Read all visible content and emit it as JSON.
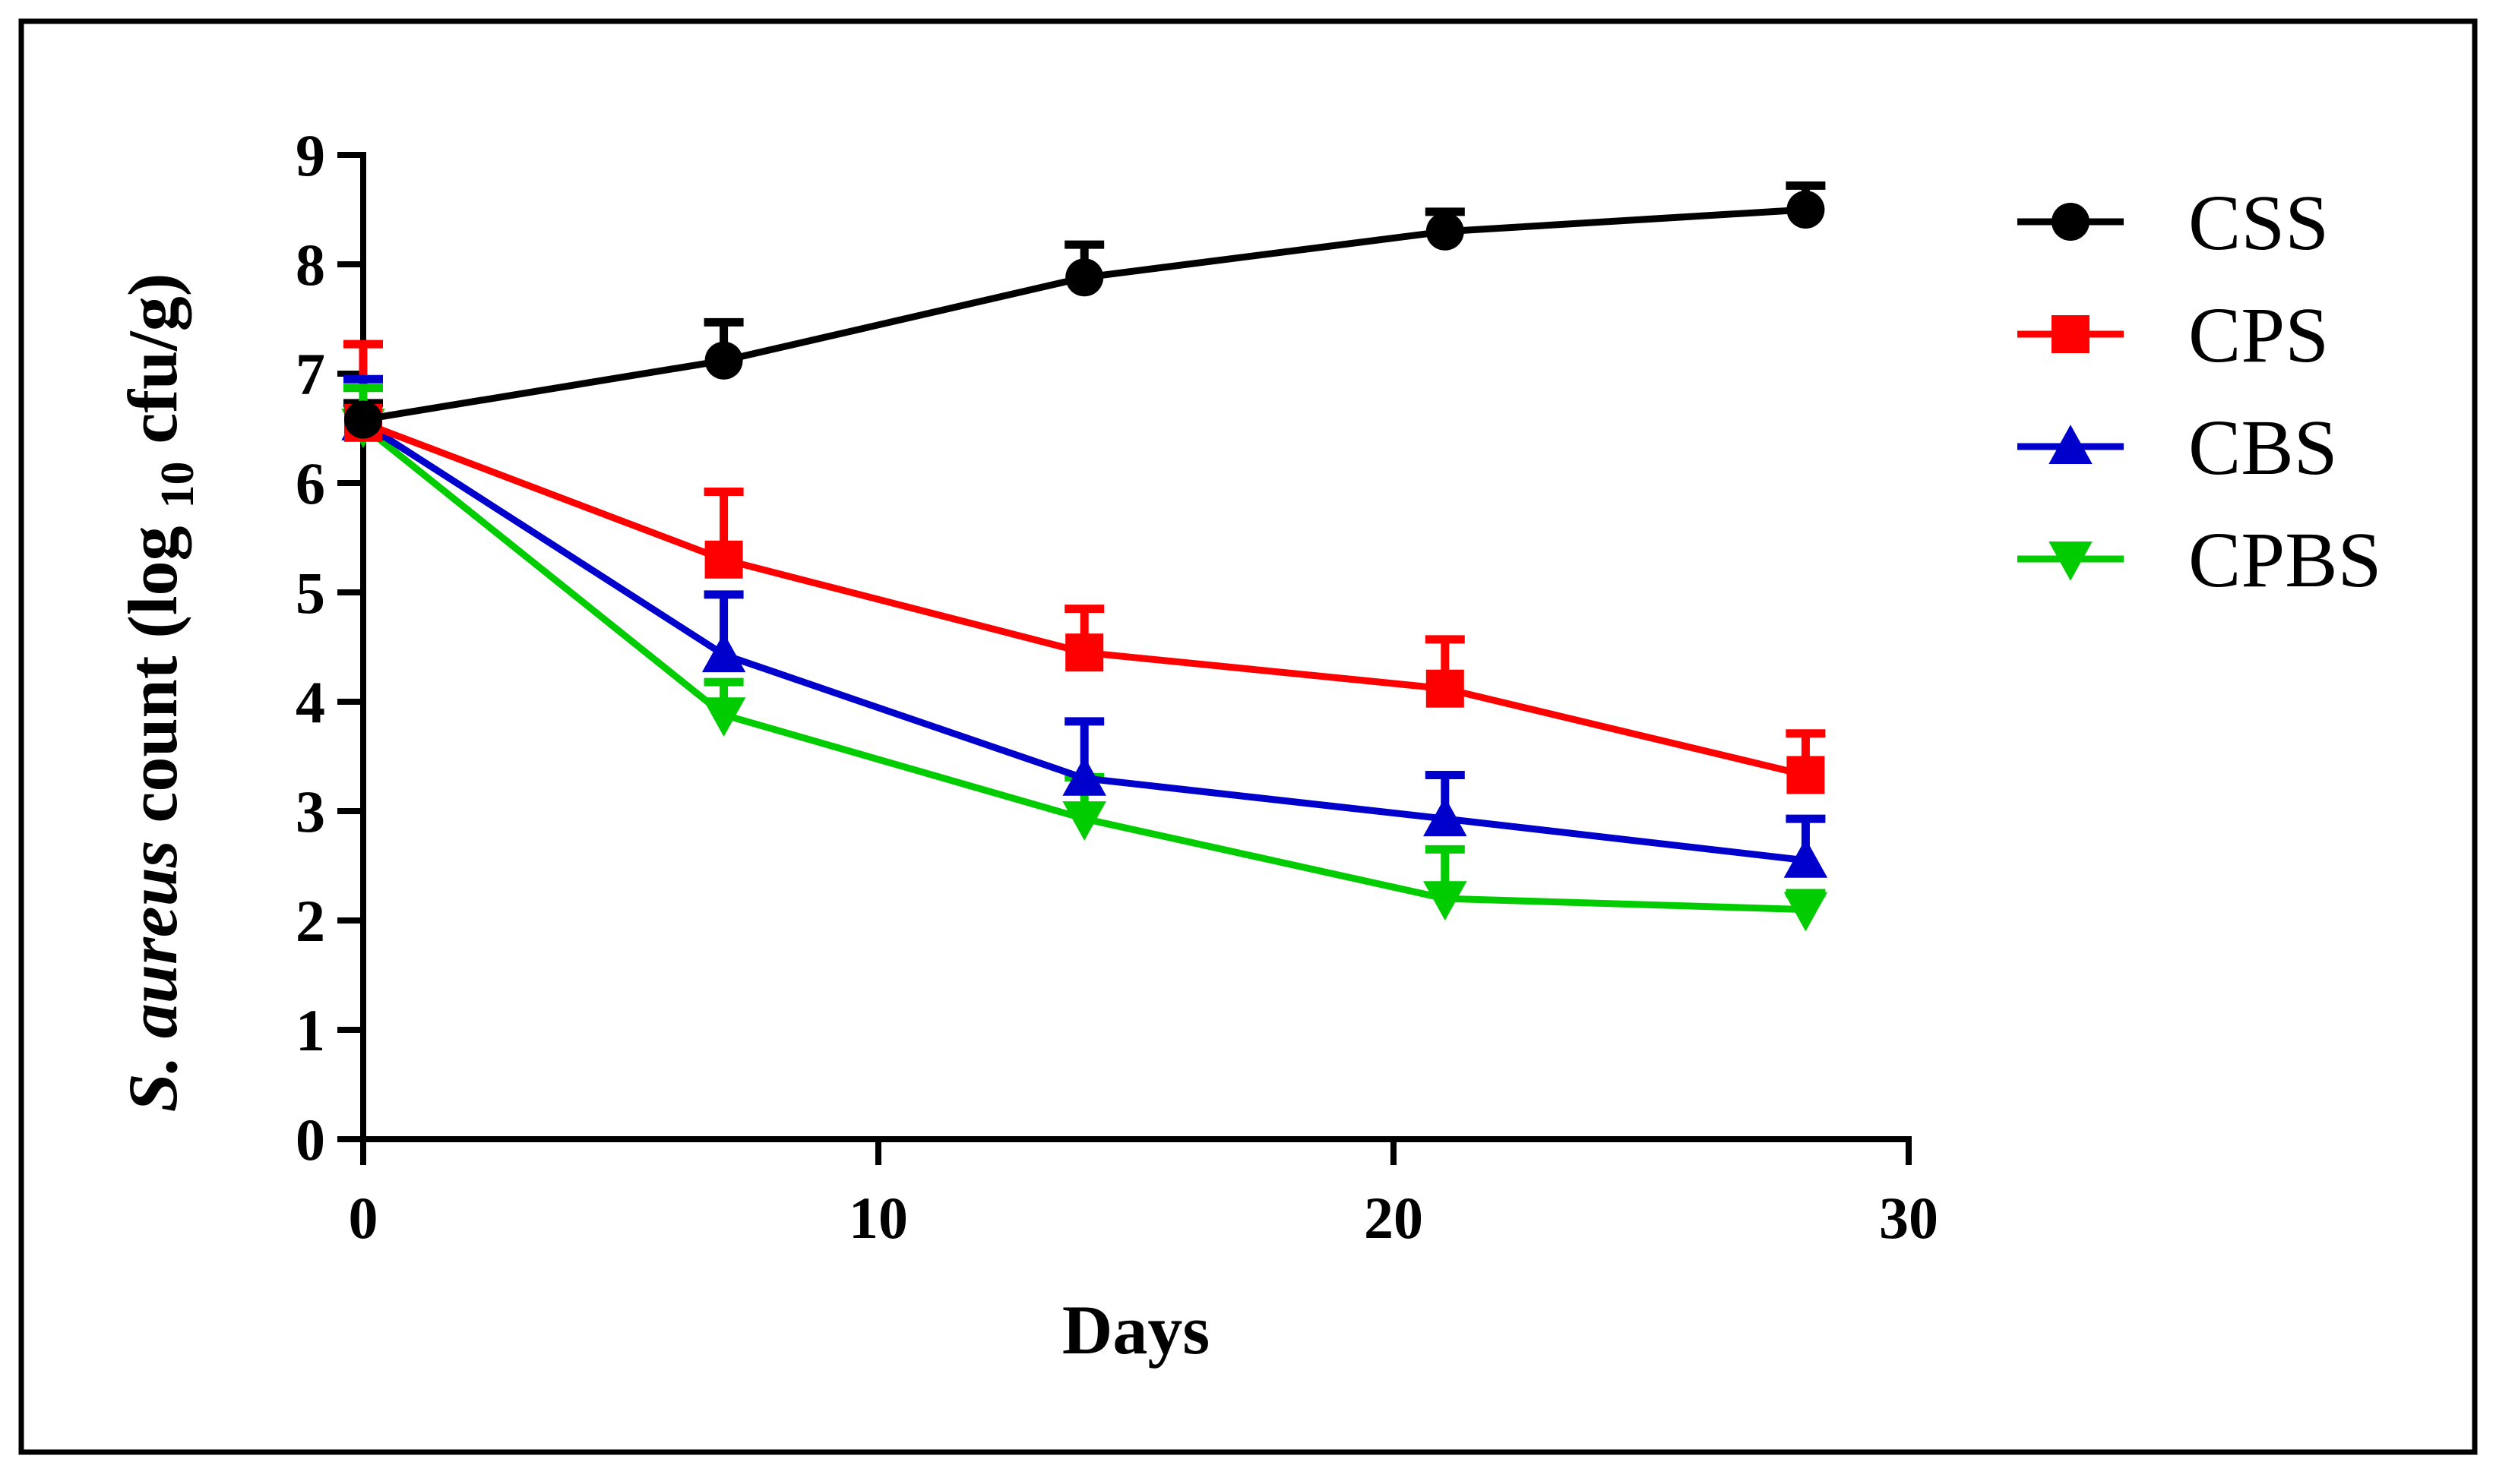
{
  "chart_data": {
    "type": "line",
    "title": "",
    "xlabel": "Days",
    "ylabel": {
      "italic_part": "S. aureus",
      "count_part": " count (log",
      "subscript": "10",
      "unit_part": " cfu/g)"
    },
    "xlim": [
      0,
      30
    ],
    "ylim": [
      0,
      9
    ],
    "x_ticks": [
      0,
      10,
      20,
      30
    ],
    "y_ticks": [
      0,
      1,
      2,
      3,
      4,
      5,
      6,
      7,
      8,
      9
    ],
    "grid": false,
    "legend_position": "right",
    "x": [
      0,
      7,
      14,
      21,
      28
    ],
    "series": [
      {
        "name": "CSS",
        "color": "#000000",
        "marker": "circle",
        "values": [
          6.58,
          7.12,
          7.88,
          8.3,
          8.5
        ],
        "errors": [
          0.15,
          0.35,
          0.3,
          0.18,
          0.22
        ]
      },
      {
        "name": "CPS",
        "color": "#ff0000",
        "marker": "square",
        "values": [
          6.55,
          5.3,
          4.45,
          4.12,
          3.33
        ],
        "errors": [
          0.72,
          0.62,
          0.4,
          0.45,
          0.38
        ]
      },
      {
        "name": "CBS",
        "color": "#0000cc",
        "marker": "triangle-up",
        "values": [
          6.55,
          4.43,
          3.3,
          2.93,
          2.55
        ],
        "errors": [
          0.4,
          0.55,
          0.52,
          0.4,
          0.38
        ]
      },
      {
        "name": "CPBS",
        "color": "#00cc00",
        "marker": "triangle-down",
        "values": [
          6.52,
          3.88,
          2.93,
          2.2,
          2.1
        ],
        "errors": [
          0.35,
          0.3,
          0.38,
          0.45,
          0.15
        ]
      }
    ]
  }
}
